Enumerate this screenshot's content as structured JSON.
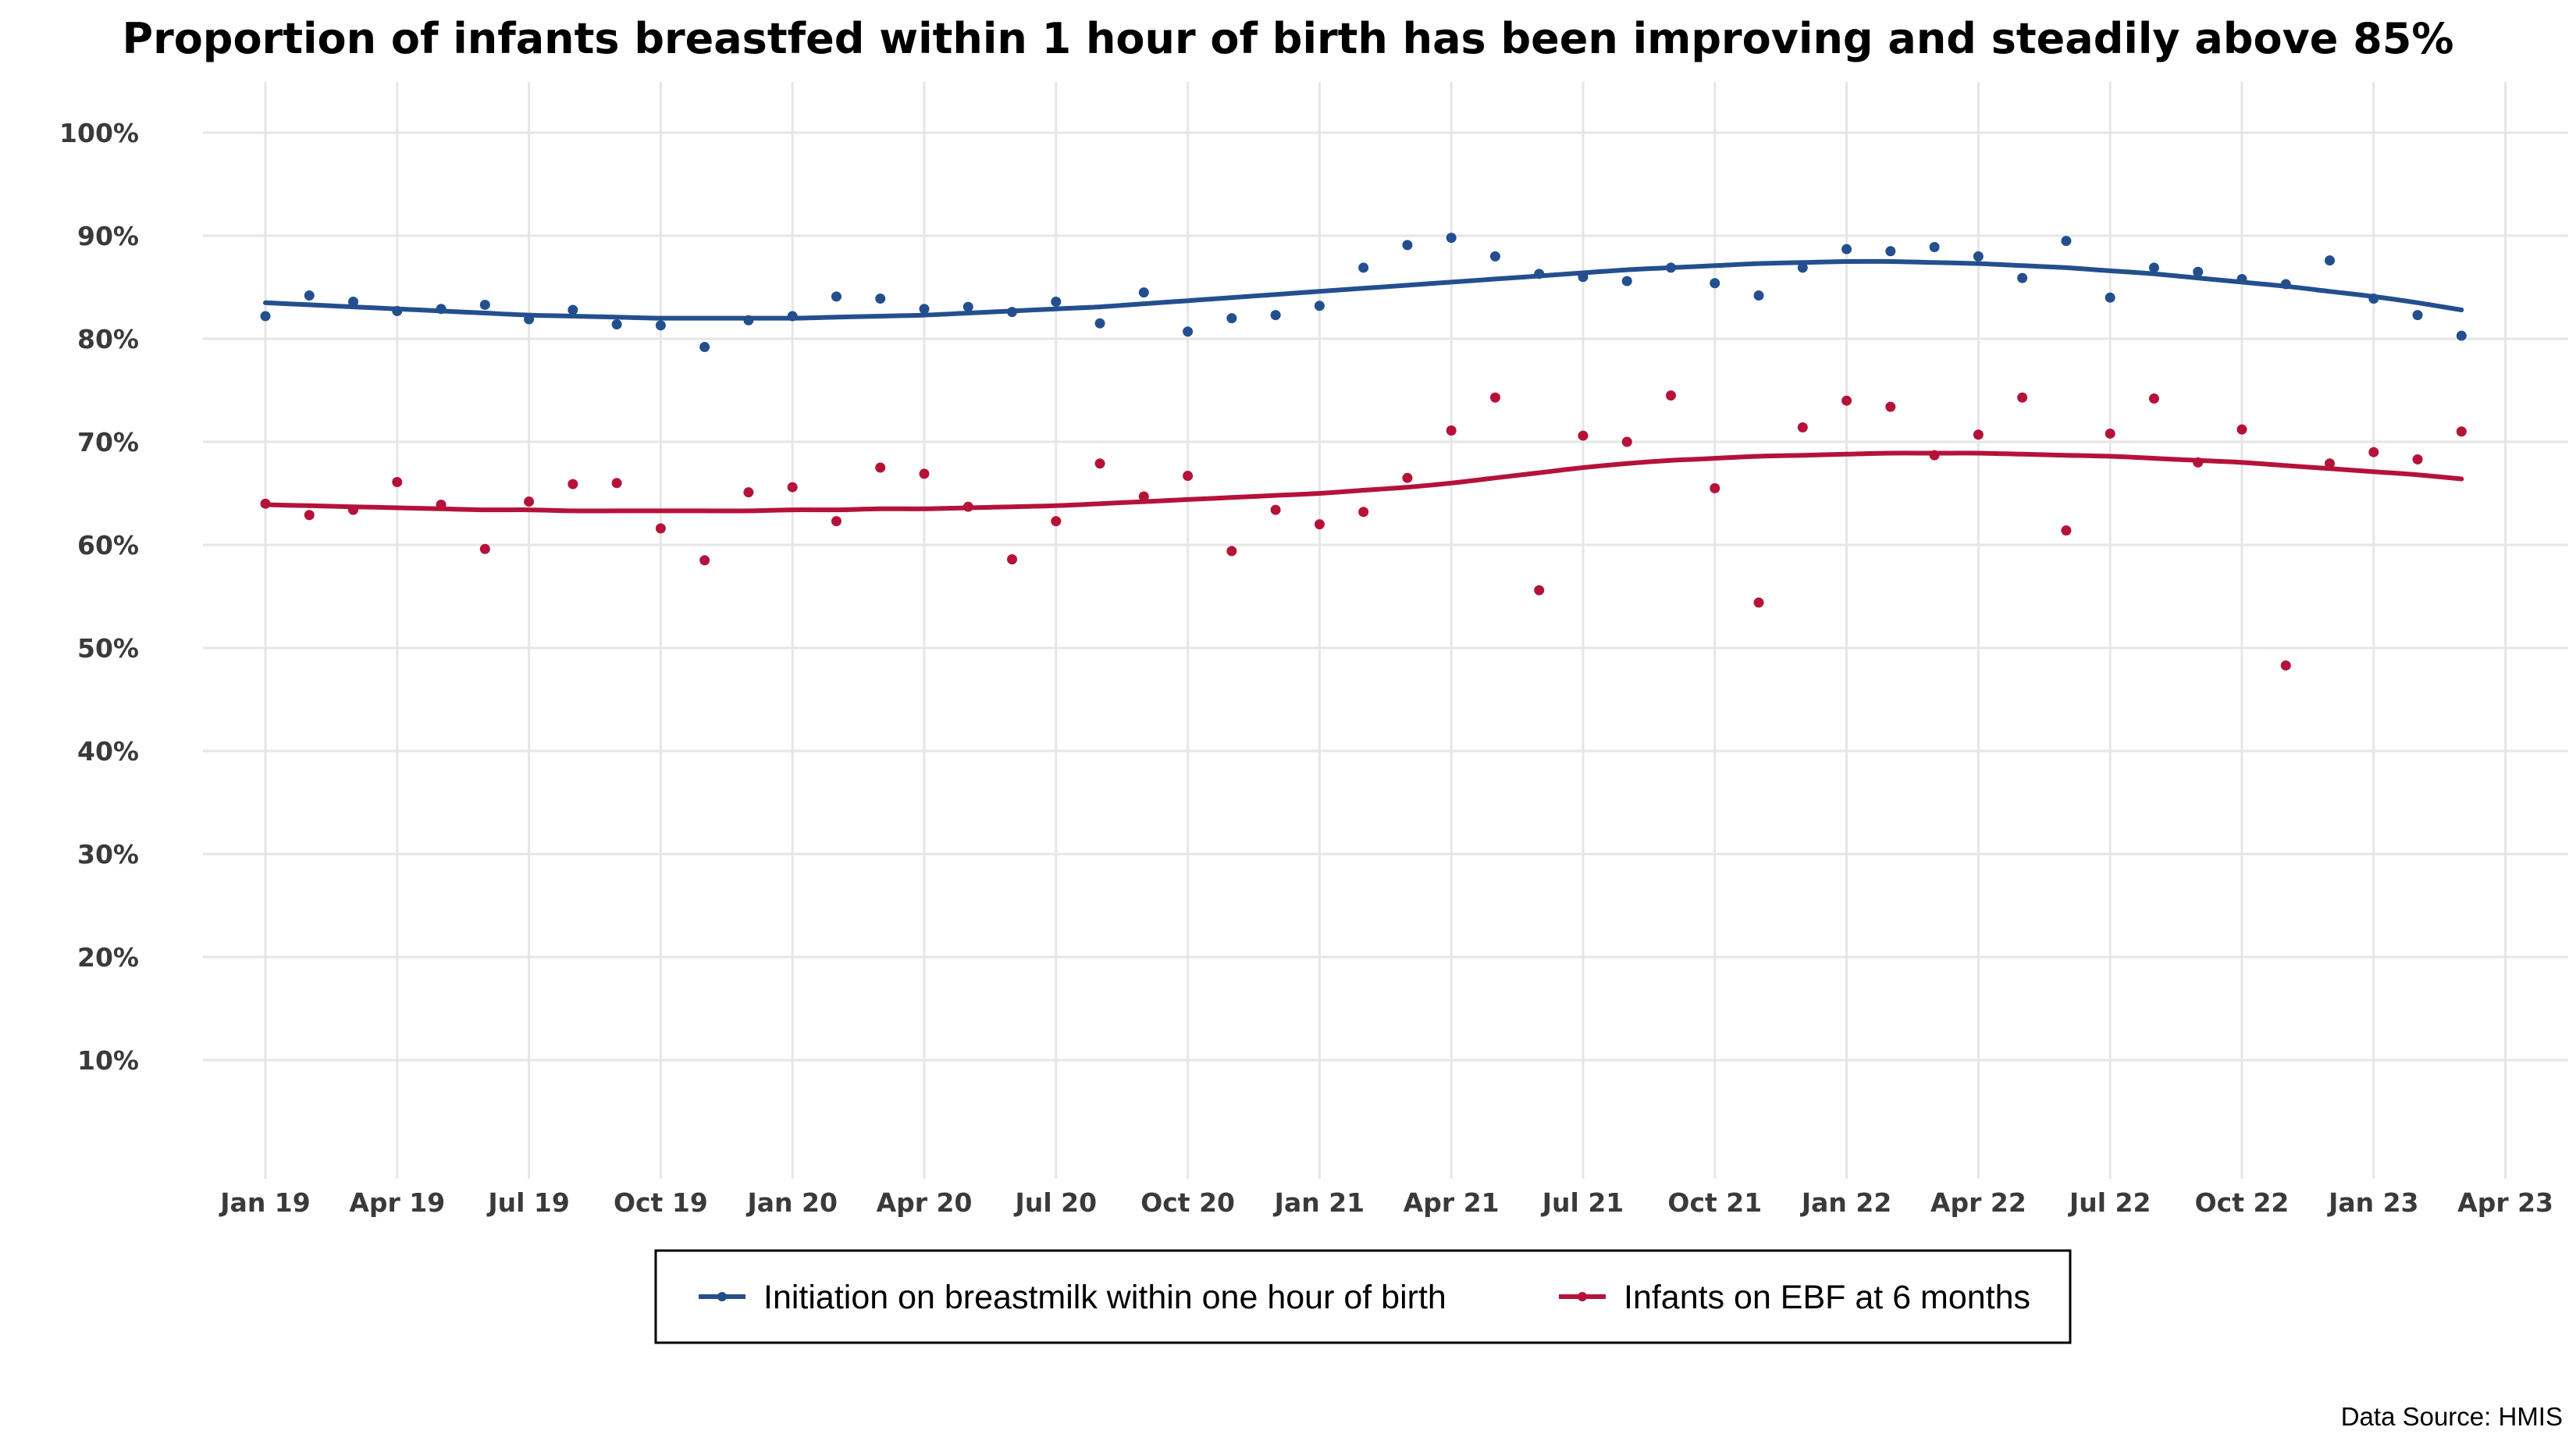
{
  "chart_data": {
    "type": "scatter",
    "title": "Proportion of infants breastfed within 1 hour of birth has been improving and steadily above 85%",
    "xlabel": "",
    "ylabel": "",
    "ylim": [
      0,
      100
    ],
    "yticks": [
      10,
      20,
      30,
      40,
      50,
      60,
      70,
      80,
      90,
      100
    ],
    "ytick_labels": [
      "10%",
      "20%",
      "30%",
      "40%",
      "50%",
      "60%",
      "70%",
      "80%",
      "90%",
      "100%"
    ],
    "xticks": [
      "2019-01",
      "2019-04",
      "2019-07",
      "2019-10",
      "2020-01",
      "2020-04",
      "2020-07",
      "2020-10",
      "2021-01",
      "2021-04",
      "2021-07",
      "2021-10",
      "2022-01",
      "2022-04",
      "2022-07",
      "2022-10",
      "2023-01",
      "2023-04"
    ],
    "xtick_labels": [
      "Jan 19",
      "Apr 19",
      "Jul 19",
      "Oct 19",
      "Jan 20",
      "Apr 20",
      "Jul 20",
      "Oct 20",
      "Jan 21",
      "Apr 21",
      "Jul 21",
      "Oct 21",
      "Jan 22",
      "Apr 22",
      "Jul 22",
      "Oct 22",
      "Jan 23",
      "Apr 23"
    ],
    "x": [
      "2019-01",
      "2019-02",
      "2019-03",
      "2019-04",
      "2019-05",
      "2019-06",
      "2019-07",
      "2019-08",
      "2019-09",
      "2019-10",
      "2019-11",
      "2019-12",
      "2020-01",
      "2020-02",
      "2020-03",
      "2020-04",
      "2020-05",
      "2020-06",
      "2020-07",
      "2020-08",
      "2020-09",
      "2020-10",
      "2020-11",
      "2020-12",
      "2021-01",
      "2021-02",
      "2021-03",
      "2021-04",
      "2021-05",
      "2021-06",
      "2021-07",
      "2021-08",
      "2021-09",
      "2021-10",
      "2021-11",
      "2021-12",
      "2022-01",
      "2022-02",
      "2022-03",
      "2022-04",
      "2022-05",
      "2022-06",
      "2022-07",
      "2022-08",
      "2022-09",
      "2022-10",
      "2022-11",
      "2022-12",
      "2023-01",
      "2023-02",
      "2023-03"
    ],
    "series": [
      {
        "name": "Initiation on breastmilk within one hour of birth",
        "color": "#234f8e",
        "values": [
          82.2,
          84.2,
          83.6,
          82.7,
          82.9,
          83.3,
          81.9,
          82.8,
          81.4,
          81.3,
          79.2,
          81.8,
          82.2,
          84.1,
          83.9,
          82.9,
          83.1,
          82.6,
          83.6,
          81.5,
          84.5,
          80.7,
          82.0,
          82.3,
          83.2,
          86.9,
          89.1,
          89.8,
          88.0,
          86.3,
          86.0,
          85.6,
          86.9,
          85.4,
          84.2,
          86.9,
          88.7,
          88.5,
          88.9,
          88.0,
          85.9,
          89.5,
          84.0,
          86.9,
          86.5,
          85.8,
          85.3,
          87.6,
          83.9,
          82.3,
          80.3
        ],
        "trend": [
          83.5,
          83.3,
          83.1,
          82.9,
          82.7,
          82.5,
          82.3,
          82.2,
          82.1,
          82.0,
          82.0,
          82.0,
          82.0,
          82.1,
          82.2,
          82.3,
          82.5,
          82.7,
          82.9,
          83.1,
          83.4,
          83.7,
          84.0,
          84.3,
          84.6,
          84.9,
          85.2,
          85.5,
          85.8,
          86.1,
          86.4,
          86.7,
          86.9,
          87.1,
          87.3,
          87.4,
          87.5,
          87.5,
          87.4,
          87.3,
          87.1,
          86.9,
          86.6,
          86.3,
          85.9,
          85.5,
          85.1,
          84.6,
          84.1,
          83.5,
          82.8
        ]
      },
      {
        "name": "Infants on EBF at 6 months",
        "color": "#b5123a",
        "values": [
          64.0,
          62.9,
          63.4,
          66.1,
          63.9,
          59.6,
          64.2,
          65.9,
          66.0,
          61.6,
          58.5,
          65.1,
          65.6,
          62.3,
          67.5,
          66.9,
          63.7,
          58.6,
          62.3,
          67.9,
          64.7,
          66.7,
          59.4,
          63.4,
          62.0,
          63.2,
          66.5,
          71.1,
          74.3,
          55.6,
          70.6,
          70.0,
          74.5,
          65.5,
          54.4,
          71.4,
          74.0,
          73.4,
          68.7,
          70.7,
          74.3,
          61.4,
          70.8,
          74.2,
          68.0,
          71.2,
          48.3,
          67.9,
          69.0,
          68.3,
          71.0
        ],
        "trend": [
          63.9,
          63.8,
          63.7,
          63.6,
          63.5,
          63.4,
          63.4,
          63.3,
          63.3,
          63.3,
          63.3,
          63.3,
          63.4,
          63.4,
          63.5,
          63.5,
          63.6,
          63.7,
          63.8,
          64.0,
          64.2,
          64.4,
          64.6,
          64.8,
          65.0,
          65.3,
          65.6,
          66.0,
          66.5,
          67.0,
          67.5,
          67.9,
          68.2,
          68.4,
          68.6,
          68.7,
          68.8,
          68.9,
          68.9,
          68.9,
          68.8,
          68.7,
          68.6,
          68.4,
          68.2,
          68.0,
          67.7,
          67.4,
          67.1,
          66.8,
          66.4
        ]
      }
    ],
    "legend": {
      "position": "bottom",
      "boxed": true
    },
    "grid": true,
    "source_note": "Data Source: HMIS"
  }
}
